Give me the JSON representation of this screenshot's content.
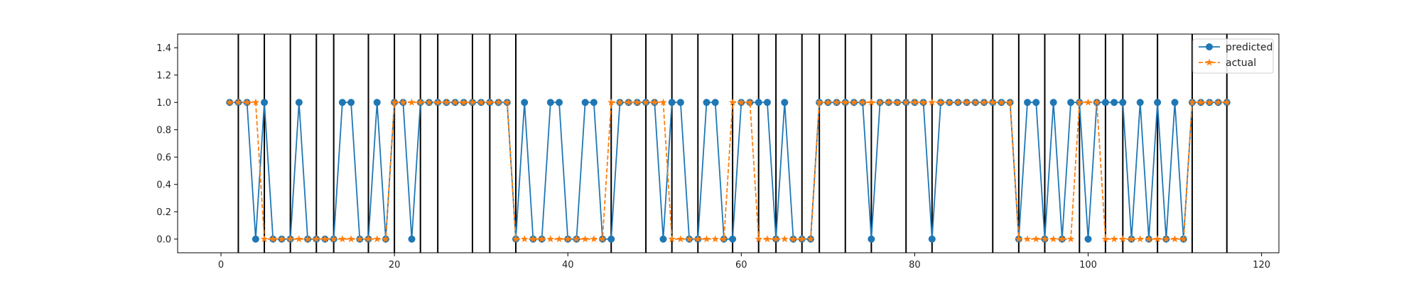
{
  "chart_data": {
    "type": "line",
    "title": "",
    "xlabel": "",
    "ylabel": "",
    "xlim": [
      -5,
      122
    ],
    "ylim": [
      -0.1,
      1.5
    ],
    "xticks": [
      0,
      20,
      40,
      60,
      80,
      100,
      120
    ],
    "yticks": [
      0.0,
      0.2,
      0.4,
      0.6,
      0.8,
      1.0,
      1.2,
      1.4
    ],
    "ytick_labels": [
      "0.0",
      "0.2",
      "0.4",
      "0.6",
      "0.8",
      "1.0",
      "1.2",
      "1.4"
    ],
    "grid": false,
    "legend_position": "top-right",
    "vertical_lines_x": [
      2,
      5,
      8,
      11,
      13,
      17,
      20,
      23,
      25,
      29,
      31,
      34,
      45,
      49,
      52,
      55,
      59,
      62,
      64,
      67,
      69,
      72,
      75,
      79,
      82,
      89,
      92,
      95,
      99,
      102,
      104,
      108,
      112,
      116
    ],
    "x": [
      1,
      2,
      3,
      4,
      5,
      6,
      7,
      8,
      9,
      10,
      11,
      12,
      13,
      14,
      15,
      16,
      17,
      18,
      19,
      20,
      21,
      22,
      23,
      24,
      25,
      26,
      27,
      28,
      29,
      30,
      31,
      32,
      33,
      34,
      35,
      36,
      37,
      38,
      39,
      40,
      41,
      42,
      43,
      44,
      45,
      46,
      47,
      48,
      49,
      50,
      51,
      52,
      53,
      54,
      55,
      56,
      57,
      58,
      59,
      60,
      61,
      62,
      63,
      64,
      65,
      66,
      67,
      68,
      69,
      70,
      71,
      72,
      73,
      74,
      75,
      76,
      77,
      78,
      79,
      80,
      81,
      82,
      83,
      84,
      85,
      86,
      87,
      88,
      89,
      90,
      91,
      92,
      93,
      94,
      95,
      96,
      97,
      98,
      99,
      100,
      101,
      102,
      103,
      104,
      105,
      106,
      107,
      108,
      109,
      110,
      111,
      112,
      113,
      114,
      115,
      116
    ],
    "series": [
      {
        "name": "predicted",
        "color": "#1f77b4",
        "marker": "circle",
        "line": "solid",
        "values": [
          1,
          1,
          1,
          0,
          1,
          0,
          0,
          0,
          1,
          0,
          0,
          0,
          0,
          1,
          1,
          0,
          0,
          1,
          0,
          1,
          1,
          0,
          1,
          1,
          1,
          1,
          1,
          1,
          1,
          1,
          1,
          1,
          1,
          0,
          1,
          0,
          0,
          1,
          1,
          0,
          0,
          1,
          1,
          0,
          0,
          1,
          1,
          1,
          1,
          1,
          0,
          1,
          1,
          0,
          0,
          1,
          1,
          0,
          0,
          1,
          1,
          1,
          1,
          0,
          1,
          0,
          0,
          0,
          1,
          1,
          1,
          1,
          1,
          1,
          0,
          1,
          1,
          1,
          1,
          1,
          1,
          0,
          1,
          1,
          1,
          1,
          1,
          1,
          1,
          1,
          1,
          0,
          1,
          1,
          0,
          1,
          0,
          1,
          1,
          0,
          1,
          1,
          1,
          1,
          0,
          1,
          0,
          1,
          0,
          1,
          0,
          1,
          1,
          1,
          1,
          1
        ]
      },
      {
        "name": "actual",
        "color": "#ff7f0e",
        "marker": "star",
        "line": "dashed",
        "values": [
          1,
          1,
          1,
          1,
          0,
          0,
          0,
          0,
          0,
          0,
          0,
          0,
          0,
          0,
          0,
          0,
          0,
          0,
          0,
          1,
          1,
          1,
          1,
          1,
          1,
          1,
          1,
          1,
          1,
          1,
          1,
          1,
          1,
          0,
          0,
          0,
          0,
          0,
          0,
          0,
          0,
          0,
          0,
          0,
          1,
          1,
          1,
          1,
          1,
          1,
          1,
          0,
          0,
          0,
          0,
          0,
          0,
          0,
          1,
          1,
          1,
          0,
          0,
          0,
          0,
          0,
          0,
          0,
          1,
          1,
          1,
          1,
          1,
          1,
          1,
          1,
          1,
          1,
          1,
          1,
          1,
          1,
          1,
          1,
          1,
          1,
          1,
          1,
          1,
          1,
          1,
          0,
          0,
          0,
          0,
          0,
          0,
          0,
          1,
          1,
          1,
          0,
          0,
          0,
          0,
          0,
          0,
          0,
          0,
          0,
          0,
          1,
          1,
          1,
          1,
          1
        ]
      }
    ]
  }
}
